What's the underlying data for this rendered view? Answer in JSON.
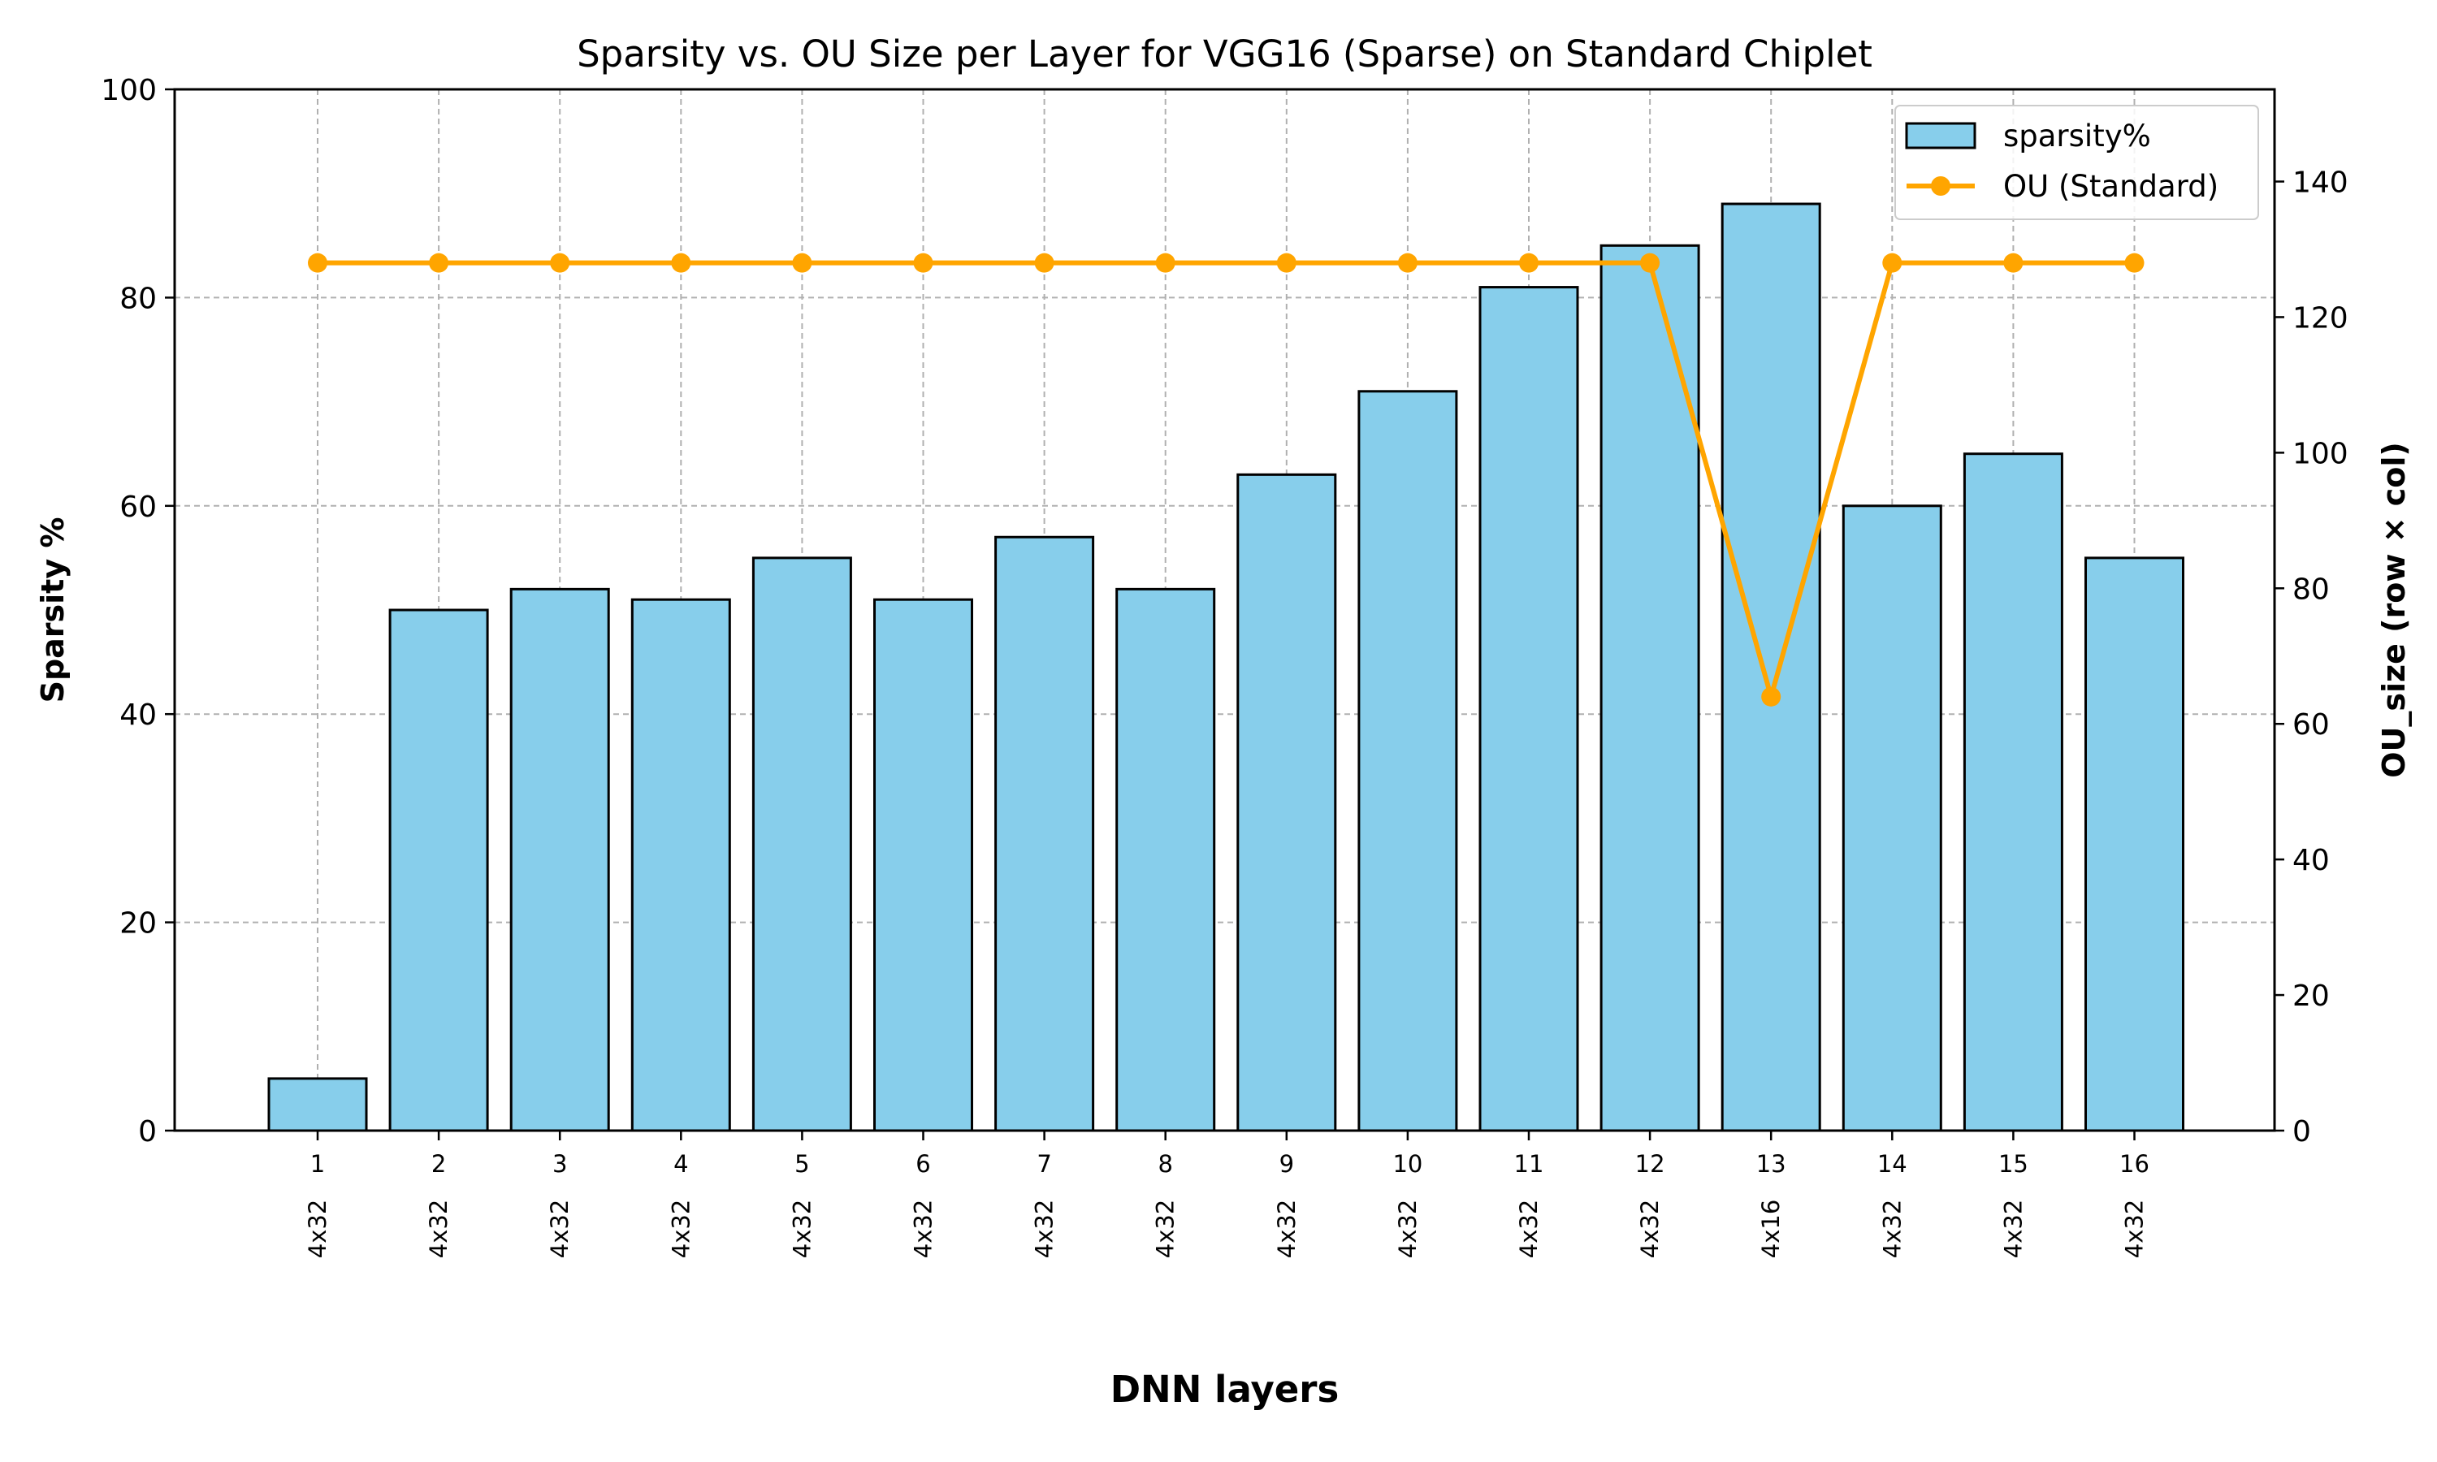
{
  "chart_data": {
    "type": "bar",
    "title": "Sparsity vs. OU Size per Layer for VGG16 (Sparse) on Standard Chiplet",
    "xlabel": "DNN layers",
    "ylabel": "Sparsity %",
    "y2label": "OU_size (row × col)",
    "categories": [
      "1",
      "2",
      "3",
      "4",
      "5",
      "6",
      "7",
      "8",
      "9",
      "10",
      "11",
      "12",
      "13",
      "14",
      "15",
      "16"
    ],
    "ou_labels": [
      "4x32",
      "4x32",
      "4x32",
      "4x32",
      "4x32",
      "4x32",
      "4x32",
      "4x32",
      "4x32",
      "4x32",
      "4x32",
      "4x32",
      "4x16",
      "4x32",
      "4x32",
      "4x32"
    ],
    "series": [
      {
        "name": "sparsity%",
        "type": "bar",
        "axis": "left",
        "color": "#87ceeb",
        "values": [
          5,
          50,
          52,
          51,
          55,
          51,
          57,
          52,
          63,
          71,
          81,
          85,
          89,
          60,
          65,
          55
        ]
      },
      {
        "name": "OU (Standard)",
        "type": "line",
        "axis": "right",
        "color": "#ffa500",
        "values": [
          128,
          128,
          128,
          128,
          128,
          128,
          128,
          128,
          128,
          128,
          128,
          128,
          64,
          128,
          128,
          128
        ]
      }
    ],
    "ylim": [
      0,
      100
    ],
    "yticks": [
      0,
      20,
      40,
      60,
      80,
      100
    ],
    "y2lim": [
      0,
      153.6
    ],
    "y2ticks": [
      0,
      20,
      40,
      60,
      80,
      100,
      120,
      140
    ],
    "grid": true,
    "legend_position": "top-right"
  }
}
